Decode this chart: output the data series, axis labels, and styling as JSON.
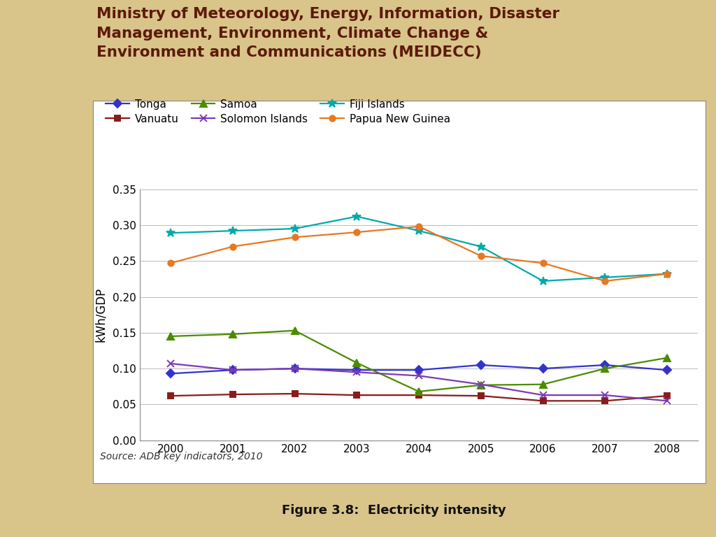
{
  "years": [
    2000,
    2001,
    2002,
    2003,
    2004,
    2005,
    2006,
    2007,
    2008
  ],
  "series": {
    "Tonga": {
      "values": [
        0.093,
        0.098,
        0.1,
        0.098,
        0.098,
        0.105,
        0.1,
        0.105,
        0.098
      ],
      "color": "#3333CC",
      "marker": "D",
      "linestyle": "-",
      "markersize": 6
    },
    "Vanuatu": {
      "values": [
        0.062,
        0.064,
        0.065,
        0.063,
        0.063,
        0.062,
        0.055,
        0.055,
        0.062
      ],
      "color": "#8B1A1A",
      "marker": "s",
      "linestyle": "-",
      "markersize": 6
    },
    "Samoa": {
      "values": [
        0.145,
        0.148,
        0.153,
        0.108,
        0.068,
        0.077,
        0.078,
        0.1,
        0.115
      ],
      "color": "#4B8B00",
      "marker": "^",
      "linestyle": "-",
      "markersize": 7
    },
    "Solomon Islands": {
      "values": [
        0.107,
        0.098,
        0.1,
        0.095,
        0.09,
        0.078,
        0.063,
        0.063,
        0.055
      ],
      "color": "#7B3BB3",
      "marker": "x",
      "linestyle": "-",
      "markersize": 7
    },
    "Fiji Islands": {
      "values": [
        0.289,
        0.292,
        0.295,
        0.312,
        0.292,
        0.27,
        0.222,
        0.227,
        0.232
      ],
      "color": "#00AAAA",
      "marker": "*",
      "linestyle": "-",
      "markersize": 9
    },
    "Papua New Guinea": {
      "values": [
        0.247,
        0.27,
        0.283,
        0.29,
        0.298,
        0.257,
        0.247,
        0.222,
        0.232
      ],
      "color": "#E87722",
      "marker": "o",
      "linestyle": "-",
      "markersize": 6
    }
  },
  "series_order": [
    "Tonga",
    "Vanuatu",
    "Samoa",
    "Solomon Islands",
    "Fiji Islands",
    "Papua New Guinea"
  ],
  "ylabel": "kWh/GDP",
  "ylim": [
    0.0,
    0.35
  ],
  "yticks": [
    0.0,
    0.05,
    0.1,
    0.15,
    0.2,
    0.25,
    0.3,
    0.35
  ],
  "source_text": "Source: ADB key indicators, 2010",
  "figure_caption": "Figure 3.8:  Electricity intensity",
  "header_line1": "Ministry of Meteorology, Energy, Information, Disaster",
  "header_line2": "Management, Environment, Climate Change &",
  "header_line3": "Environment and Communications (MEIDECC)",
  "header_bg_color": "#F0DFB0",
  "chart_bg_color": "#FFFFFF",
  "outer_bg_color": "#D9C48A",
  "header_text_color": "#5C1A0A",
  "dark_bar_color": "#111111",
  "caption_bg_color": "#D9C48A"
}
